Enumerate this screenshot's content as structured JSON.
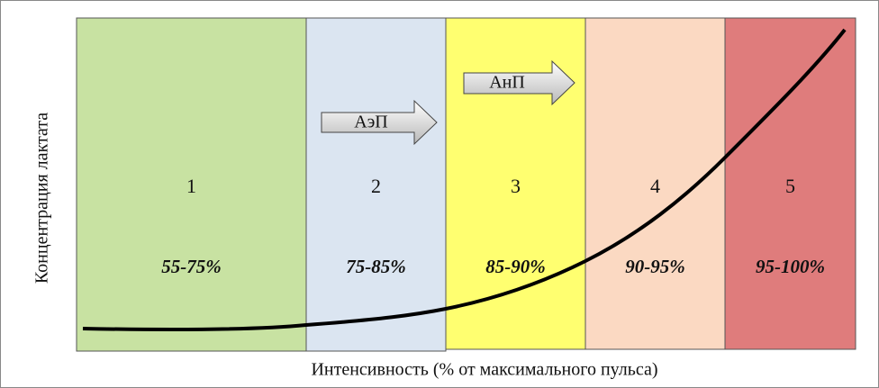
{
  "zones": [
    {
      "number": "1",
      "range": "55-75%"
    },
    {
      "number": "2",
      "range": "75-85%"
    },
    {
      "number": "3",
      "range": "85-90%"
    },
    {
      "number": "4",
      "range": "90-95%"
    },
    {
      "number": "5",
      "range": "95-100%"
    }
  ],
  "arrows": [
    {
      "label": "АэП"
    },
    {
      "label": "АнП"
    }
  ],
  "axes": {
    "x_title": "Интенсивность (% от максимального пульса)",
    "y_title": "Концентрация лактата"
  }
}
